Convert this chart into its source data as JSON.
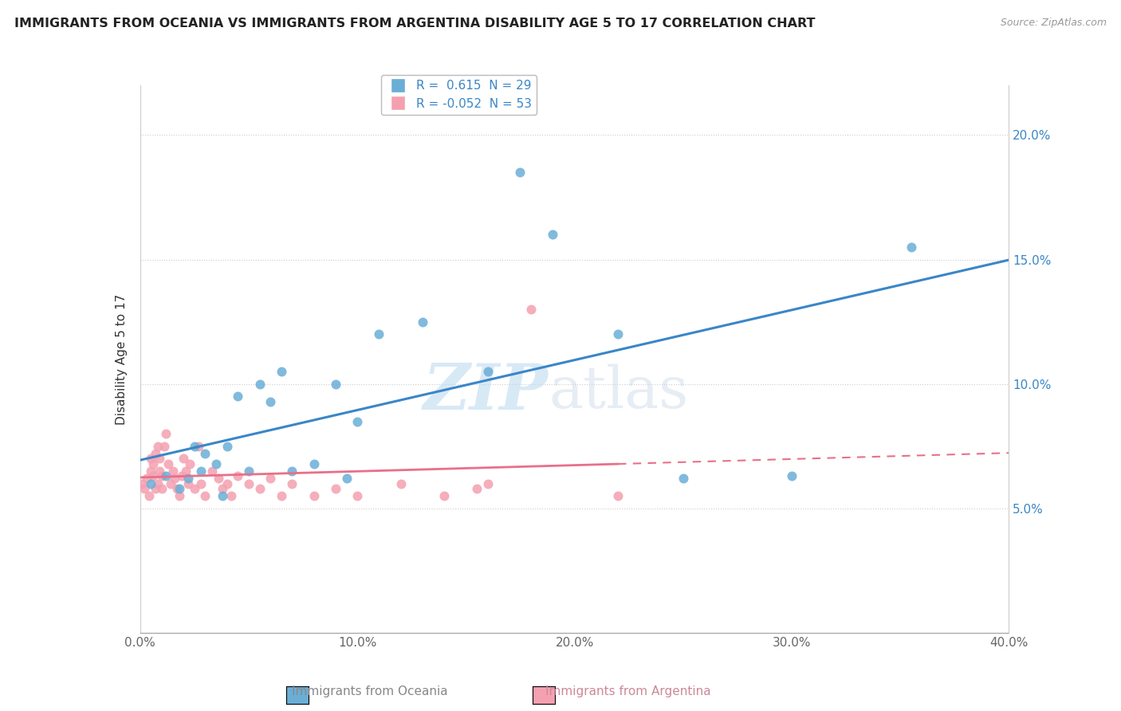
{
  "title": "IMMIGRANTS FROM OCEANIA VS IMMIGRANTS FROM ARGENTINA DISABILITY AGE 5 TO 17 CORRELATION CHART",
  "source": "Source: ZipAtlas.com",
  "ylabel": "Disability Age 5 to 17",
  "xlim": [
    0.0,
    0.4
  ],
  "ylim": [
    0.0,
    0.22
  ],
  "xticks": [
    0.0,
    0.1,
    0.2,
    0.3,
    0.4
  ],
  "xtick_labels": [
    "0.0%",
    "10.0%",
    "20.0%",
    "30.0%",
    "40.0%"
  ],
  "yticks": [
    0.05,
    0.1,
    0.15,
    0.2
  ],
  "ytick_labels": [
    "5.0%",
    "10.0%",
    "15.0%",
    "20.0%"
  ],
  "blue_R": 0.615,
  "blue_N": 29,
  "pink_R": -0.052,
  "pink_N": 53,
  "blue_color": "#6aaed6",
  "pink_color": "#f4a0b0",
  "blue_line_color": "#3a86c8",
  "pink_line_color": "#e8708a",
  "watermark_zip": "ZIP",
  "watermark_atlas": "atlas",
  "oceania_x": [
    0.005,
    0.012,
    0.018,
    0.022,
    0.025,
    0.028,
    0.03,
    0.035,
    0.038,
    0.04,
    0.045,
    0.05,
    0.055,
    0.06,
    0.065,
    0.07,
    0.08,
    0.09,
    0.095,
    0.1,
    0.11,
    0.13,
    0.16,
    0.175,
    0.19,
    0.22,
    0.25,
    0.3,
    0.355
  ],
  "oceania_y": [
    0.06,
    0.063,
    0.058,
    0.062,
    0.075,
    0.065,
    0.072,
    0.068,
    0.055,
    0.075,
    0.095,
    0.065,
    0.1,
    0.093,
    0.105,
    0.065,
    0.068,
    0.1,
    0.062,
    0.085,
    0.12,
    0.125,
    0.105,
    0.185,
    0.16,
    0.12,
    0.062,
    0.063,
    0.155
  ],
  "argentina_x": [
    0.001,
    0.002,
    0.003,
    0.004,
    0.005,
    0.005,
    0.006,
    0.006,
    0.007,
    0.007,
    0.008,
    0.008,
    0.009,
    0.009,
    0.01,
    0.01,
    0.011,
    0.012,
    0.013,
    0.014,
    0.015,
    0.016,
    0.017,
    0.018,
    0.019,
    0.02,
    0.021,
    0.022,
    0.023,
    0.025,
    0.027,
    0.028,
    0.03,
    0.033,
    0.036,
    0.038,
    0.04,
    0.042,
    0.045,
    0.05,
    0.055,
    0.06,
    0.065,
    0.07,
    0.08,
    0.09,
    0.1,
    0.12,
    0.14,
    0.155,
    0.16,
    0.18,
    0.22
  ],
  "argentina_y": [
    0.06,
    0.058,
    0.062,
    0.055,
    0.065,
    0.07,
    0.063,
    0.068,
    0.058,
    0.072,
    0.075,
    0.06,
    0.065,
    0.07,
    0.063,
    0.058,
    0.075,
    0.08,
    0.068,
    0.06,
    0.065,
    0.062,
    0.058,
    0.055,
    0.063,
    0.07,
    0.065,
    0.06,
    0.068,
    0.058,
    0.075,
    0.06,
    0.055,
    0.065,
    0.062,
    0.058,
    0.06,
    0.055,
    0.063,
    0.06,
    0.058,
    0.062,
    0.055,
    0.06,
    0.055,
    0.058,
    0.055,
    0.06,
    0.055,
    0.058,
    0.06,
    0.13,
    0.055
  ],
  "legend_label_blue": "R =  0.615  N = 29",
  "legend_label_pink": "R = -0.052  N = 53",
  "legend_blue_r": "R = ",
  "legend_blue_rv": " 0.615",
  "legend_blue_n": "  N = 29",
  "legend_pink_r": "R = ",
  "legend_pink_rv": "-0.052",
  "legend_pink_n": "  N = 53"
}
